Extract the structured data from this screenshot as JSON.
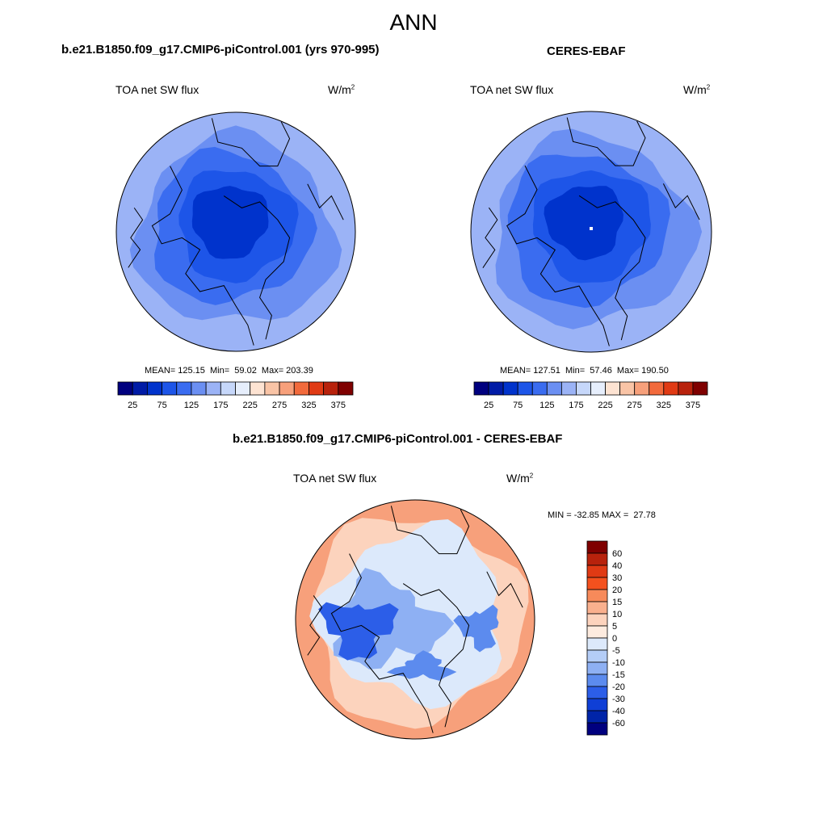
{
  "page": {
    "title": "ANN"
  },
  "panels": [
    {
      "title": "b.e21.B1850.f09_g17.CMIP6-piControl.001 (yrs 970-995)",
      "variable_label": "TOA net SW flux",
      "units_main": "W/m",
      "units_sup": "2",
      "stats": "MEAN= 125.15  Min=  59.02  Max= 203.39"
    },
    {
      "title": "CERES-EBAF",
      "variable_label": "TOA net SW flux",
      "units_main": "W/m",
      "units_sup": "2",
      "stats": "MEAN= 127.51  Min=  57.46  Max= 190.50"
    },
    {
      "title": "b.e21.B1850.f09_g17.CMIP6-piControl.001 - CERES-EBAF",
      "variable_label": "TOA net SW flux",
      "units_main": "W/m",
      "units_sup": "2",
      "stats": "MIN = -32.85 MAX =  27.78"
    }
  ],
  "chart_data": [
    {
      "type": "heatmap",
      "projection": "north-polar-stereographic",
      "title": "b.e21.B1850.f09_g17.CMIP6-piControl.001 (yrs 970-995)",
      "variable": "TOA net SW flux",
      "units": "W/m2",
      "mean": 125.15,
      "min": 59.02,
      "max": 203.39,
      "colorbar": {
        "orientation": "horizontal",
        "levels": [
          25,
          50,
          75,
          100,
          125,
          150,
          175,
          200,
          225,
          250,
          275,
          300,
          325,
          350,
          375
        ],
        "tick_labels": [
          "25",
          "75",
          "125",
          "175",
          "225",
          "275",
          "325",
          "375"
        ],
        "colors": [
          "#00007f",
          "#001ba6",
          "#0033cc",
          "#1d55e8",
          "#3a6cf0",
          "#6b8ff2",
          "#9bb3f6",
          "#c6d7fa",
          "#e6eefc",
          "#fde3d2",
          "#f9c4a6",
          "#f7a07b",
          "#f26a3c",
          "#e03a14",
          "#b8220c",
          "#7f0000"
        ]
      }
    },
    {
      "type": "heatmap",
      "projection": "north-polar-stereographic",
      "title": "CERES-EBAF",
      "variable": "TOA net SW flux",
      "units": "W/m2",
      "mean": 127.51,
      "min": 57.46,
      "max": 190.5,
      "colorbar": {
        "orientation": "horizontal",
        "levels": [
          25,
          50,
          75,
          100,
          125,
          150,
          175,
          200,
          225,
          250,
          275,
          300,
          325,
          350,
          375
        ],
        "tick_labels": [
          "25",
          "75",
          "125",
          "175",
          "225",
          "275",
          "325",
          "375"
        ],
        "colors": [
          "#00007f",
          "#001ba6",
          "#0033cc",
          "#1d55e8",
          "#3a6cf0",
          "#6b8ff2",
          "#9bb3f6",
          "#c6d7fa",
          "#e6eefc",
          "#fde3d2",
          "#f9c4a6",
          "#f7a07b",
          "#f26a3c",
          "#e03a14",
          "#b8220c",
          "#7f0000"
        ]
      }
    },
    {
      "type": "heatmap",
      "projection": "north-polar-stereographic",
      "title": "b.e21.B1850.f09_g17.CMIP6-piControl.001 - CERES-EBAF",
      "variable": "TOA net SW flux",
      "units": "W/m2",
      "min": -32.85,
      "max": 27.78,
      "colorbar": {
        "orientation": "vertical",
        "levels": [
          60,
          40,
          30,
          20,
          15,
          10,
          5,
          0,
          -5,
          -10,
          -15,
          -20,
          -30,
          -40,
          -60
        ],
        "tick_labels": [
          "60",
          "40",
          "30",
          "20",
          "15",
          "10",
          "5",
          "0",
          "-5",
          "-10",
          "-15",
          "-20",
          "-30",
          "-40",
          "-60"
        ],
        "colors": [
          "#7f0000",
          "#b8220c",
          "#e03a14",
          "#f4511e",
          "#f78a5a",
          "#f9b08e",
          "#fcd3bd",
          "#fdebdf",
          "#dce9fb",
          "#b4cdf7",
          "#8eb0f3",
          "#5c8bee",
          "#2c5ee8",
          "#0f3fd6",
          "#0024a8",
          "#00007f"
        ]
      }
    }
  ]
}
